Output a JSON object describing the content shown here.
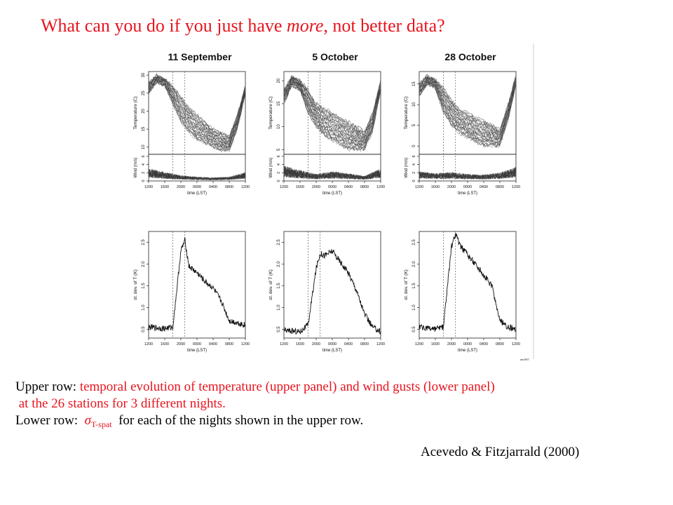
{
  "title": {
    "before": "What can you do if you just have ",
    "emphasis": "more",
    "after": ", not better data?"
  },
  "colors": {
    "title": "#e8141e",
    "caption_highlight": "#e8141e",
    "ink": "#000000"
  },
  "chart_data": {
    "type": "line",
    "panel_titles": [
      "11 September",
      "5 October",
      "28 October"
    ],
    "x_tick_labels": [
      "1200",
      "1600",
      "2000",
      "0000",
      "0400",
      "0800",
      "1200"
    ],
    "x_label": "time (LST)",
    "event_markers_lst": [
      "1800",
      "2100"
    ],
    "stations": 26,
    "temperature": {
      "ylabel": "Temperature (C)",
      "panels": [
        {
          "ylim": [
            8,
            31
          ],
          "yticks": [
            "10",
            "15",
            "20",
            "25",
            "30"
          ],
          "x": [
            "1200",
            "1400",
            "1600",
            "1800",
            "2000",
            "2200",
            "0000",
            "0200",
            "0400",
            "0600",
            "0800",
            "1000",
            "1200"
          ],
          "y_high": [
            28,
            30,
            29,
            27,
            24,
            21,
            19,
            17,
            15,
            14,
            13,
            19,
            27
          ],
          "y_low": [
            25,
            28,
            27,
            22,
            17,
            14,
            12,
            11,
            10,
            9,
            9,
            15,
            25
          ]
        },
        {
          "ylim": [
            4,
            22
          ],
          "yticks": [
            "5",
            "10",
            "15",
            "20"
          ],
          "x": [
            "1200",
            "1400",
            "1600",
            "1800",
            "2000",
            "2200",
            "0000",
            "0200",
            "0400",
            "0600",
            "0800",
            "1000",
            "1200"
          ],
          "y_high": [
            18,
            21,
            20,
            18,
            15,
            14,
            13,
            12,
            11,
            10,
            9,
            13,
            20
          ],
          "y_low": [
            15,
            19,
            18,
            13,
            10,
            8,
            7,
            6,
            5,
            5,
            5,
            9,
            18
          ]
        },
        {
          "ylim": [
            -2,
            18
          ],
          "yticks": [
            "0",
            "5",
            "10",
            "15"
          ],
          "x": [
            "1200",
            "1400",
            "1600",
            "1800",
            "2000",
            "2200",
            "0000",
            "0200",
            "0400",
            "0600",
            "0800",
            "1000",
            "1200"
          ],
          "y_high": [
            15,
            17,
            16,
            14,
            11,
            9,
            8,
            7,
            6,
            5,
            4,
            10,
            17
          ],
          "y_low": [
            12,
            15,
            14,
            8,
            5,
            3,
            2,
            1,
            0,
            0,
            0,
            6,
            15
          ]
        }
      ]
    },
    "wind": {
      "ylabel": "Wind (m/s)",
      "yticks": [
        "0",
        "2",
        "4",
        "6"
      ],
      "ylim": [
        0,
        6.5
      ],
      "panels": [
        {
          "x": [
            "1200",
            "1600",
            "2000",
            "0000",
            "0400",
            "0800",
            "1200"
          ],
          "y_mean": [
            1.8,
            1.3,
            0.8,
            0.6,
            0.5,
            0.6,
            1.3
          ]
        },
        {
          "x": [
            "1200",
            "1600",
            "2000",
            "0000",
            "0400",
            "0800",
            "1200"
          ],
          "y_mean": [
            2.2,
            1.6,
            1.0,
            1.4,
            1.1,
            0.7,
            1.8
          ]
        },
        {
          "x": [
            "1200",
            "1600",
            "2000",
            "0000",
            "0400",
            "0800",
            "1200"
          ],
          "y_mean": [
            1.4,
            1.1,
            1.3,
            1.0,
            0.9,
            1.2,
            2.0
          ]
        }
      ]
    },
    "st_dev": {
      "ylabel": "st. dev. of T (K)",
      "ylim": [
        0.3,
        2.75
      ],
      "yticks": [
        "0.5",
        "1.0",
        "1.5",
        "2.0",
        "2.5"
      ],
      "panels": [
        {
          "x": [
            "1200",
            "1600",
            "1800",
            "2000",
            "2100",
            "2200",
            "0000",
            "0200",
            "0400",
            "0600",
            "0800",
            "1000",
            "1200"
          ],
          "y": [
            0.55,
            0.52,
            0.55,
            2.3,
            2.55,
            1.95,
            1.8,
            1.6,
            1.45,
            1.15,
            0.7,
            0.65,
            0.6
          ]
        },
        {
          "x": [
            "1200",
            "1600",
            "1800",
            "2000",
            "2100",
            "2200",
            "0000",
            "0200",
            "0400",
            "0600",
            "0800",
            "1000",
            "1200"
          ],
          "y": [
            0.48,
            0.45,
            0.6,
            1.9,
            2.25,
            2.2,
            2.3,
            2.05,
            1.8,
            1.4,
            0.85,
            0.55,
            0.45
          ]
        },
        {
          "x": [
            "1200",
            "1600",
            "1800",
            "2000",
            "2100",
            "2200",
            "0000",
            "0200",
            "0400",
            "0600",
            "0800",
            "1000",
            "1200"
          ],
          "y": [
            0.55,
            0.5,
            0.55,
            2.4,
            2.7,
            2.45,
            2.2,
            2.0,
            1.75,
            1.5,
            0.7,
            0.55,
            0.5
          ]
        }
      ]
    },
    "watermark": "ww.RRT"
  },
  "caption": {
    "line1_black": "Upper row: ",
    "line1_red": "temporal evolution of temperature (upper panel) and wind gusts (lower panel)",
    "line2_red": " at the 26 stations for 3 different nights.",
    "line3_black": "Lower row:  ",
    "sigma": "σ",
    "sigma_sub": "T-spat",
    "line3_red": "  for each of the nights shown in the upper row."
  },
  "citation": "Acevedo & Fitzjarrald (2000)"
}
